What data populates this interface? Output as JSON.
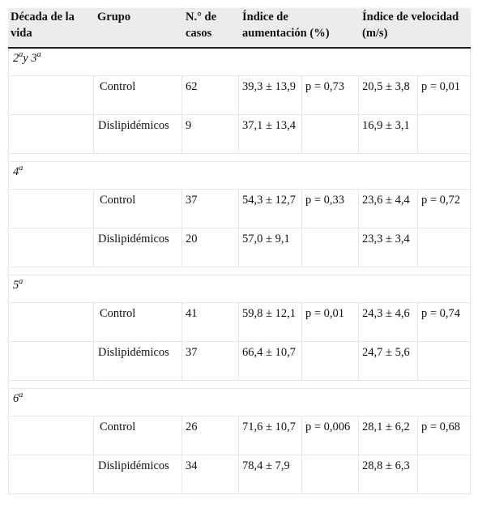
{
  "headers": {
    "decada": "Década de la vida",
    "grupo": "Grupo",
    "casos": "N.° de casos",
    "aumentacion": "Índice de aumentación (%)",
    "velocidad": "Índice de velocidad (m/s)"
  },
  "sections": [
    {
      "label_main": "2",
      "label_sup": "a",
      "label_mid": "y 3",
      "label_sup2": "a",
      "rows": [
        {
          "grupo": "Control",
          "n": "62",
          "ai": "39,3 ± 13,9",
          "ai_p": "p = 0,73",
          "vi": "20,5 ± 3,8",
          "vi_p": "p = 0,01"
        },
        {
          "grupo": "Dislipidémicos",
          "n": "9",
          "ai": "37,1 ± 13,4",
          "ai_p": "",
          "vi": "16,9 ± 3,1",
          "vi_p": ""
        }
      ]
    },
    {
      "label_main": "4",
      "label_sup": "a",
      "rows": [
        {
          "grupo": "Control",
          "n": "37",
          "ai": "54,3 ± 12,7",
          "ai_p": "p = 0,33",
          "vi": "23,6 ± 4,4",
          "vi_p": "p = 0,72"
        },
        {
          "grupo": "Dislipidémicos",
          "n": "20",
          "ai": "57,0 ± 9,1",
          "ai_p": "",
          "vi": "23,3 ± 3,4",
          "vi_p": ""
        }
      ]
    },
    {
      "label_main": "5",
      "label_sup": "a",
      "rows": [
        {
          "grupo": "Control",
          "n": "41",
          "ai": "59,8 ± 12,1",
          "ai_p": "p = 0,01",
          "vi": "24,3 ± 4,6",
          "vi_p": "p = 0,74"
        },
        {
          "grupo": "Dislipidémicos",
          "n": "37",
          "ai": "66,4 ± 10,7",
          "ai_p": "",
          "vi": "24,7 ± 5,6",
          "vi_p": ""
        }
      ]
    },
    {
      "label_main": "6",
      "label_sup": "a",
      "rows": [
        {
          "grupo": "Control",
          "n": "26",
          "ai": "71,6 ± 10,7",
          "ai_p": "p = 0,006",
          "vi": "28,1 ± 6,2",
          "vi_p": "p = 0,68"
        },
        {
          "grupo": "Dislipidémicos",
          "n": "34",
          "ai": "78,4 ± 7,9",
          "ai_p": "",
          "vi": "28,8 ± 6,3",
          "vi_p": ""
        }
      ]
    }
  ]
}
